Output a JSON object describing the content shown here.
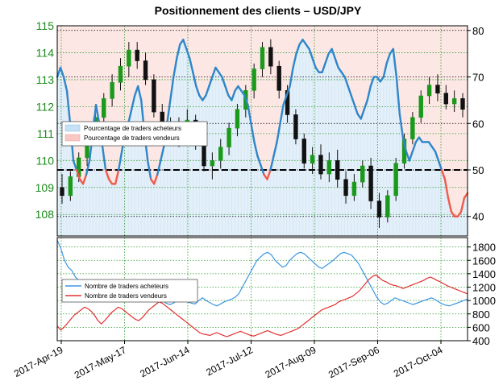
{
  "chart_data": [
    {
      "type": "candlestick",
      "title": "Positionnement des clients – USD/JPY",
      "x_ticks": [
        "2017-Apr-19",
        "2017-May-17",
        "2017-Jun-14",
        "2017-Jul-12",
        "2017-Aug-09",
        "2017-Sep-06",
        "2017-Oct-04"
      ],
      "y_left_ticks": [
        108,
        109,
        110,
        111,
        112,
        113,
        114,
        115
      ],
      "y_left_range": [
        107.2,
        115
      ],
      "y_right_ticks": [
        40,
        50,
        60,
        70,
        80
      ],
      "y_right_range": [
        35.8,
        81
      ],
      "grid": true,
      "legend_position": "left",
      "legend": [
        "Pourcentage de traders acheteurs",
        "Pourcentage de traders vendeurs"
      ],
      "reference_line_right": 50,
      "price_ohlc_sample": [
        [
          109.0,
          109.5,
          108.4,
          108.7
        ],
        [
          108.7,
          109.6,
          108.5,
          109.4
        ],
        [
          109.4,
          110.3,
          109.2,
          110.1
        ],
        [
          110.1,
          111.0,
          109.8,
          110.8
        ],
        [
          110.8,
          111.8,
          110.6,
          111.6
        ],
        [
          111.6,
          112.5,
          111.2,
          112.3
        ],
        [
          112.3,
          113.2,
          112.0,
          112.9
        ],
        [
          112.9,
          113.8,
          112.6,
          113.5
        ],
        [
          113.5,
          114.4,
          113.1,
          114.1
        ],
        [
          114.1,
          114.4,
          113.4,
          113.7
        ],
        [
          113.7,
          114.0,
          112.8,
          113.0
        ],
        [
          113.0,
          113.2,
          111.6,
          111.8
        ],
        [
          111.8,
          112.1,
          110.9,
          111.2
        ],
        [
          111.2,
          111.6,
          110.6,
          110.9
        ],
        [
          110.9,
          111.6,
          110.5,
          111.3
        ],
        [
          111.3,
          111.9,
          110.9,
          111.5
        ],
        [
          111.5,
          111.7,
          110.4,
          110.6
        ],
        [
          110.6,
          110.9,
          109.6,
          109.8
        ],
        [
          109.8,
          110.3,
          109.3,
          110.0
        ],
        [
          110.0,
          110.8,
          109.7,
          110.5
        ],
        [
          110.5,
          111.4,
          110.2,
          111.2
        ],
        [
          111.2,
          112.1,
          110.9,
          111.9
        ],
        [
          111.9,
          112.8,
          111.6,
          112.6
        ],
        [
          112.6,
          113.6,
          112.3,
          113.4
        ],
        [
          113.4,
          114.4,
          113.1,
          114.2
        ],
        [
          114.2,
          114.5,
          113.2,
          113.5
        ],
        [
          113.5,
          113.7,
          112.3,
          112.6
        ],
        [
          112.6,
          112.8,
          111.4,
          111.7
        ],
        [
          111.7,
          111.9,
          110.6,
          110.8
        ],
        [
          110.8,
          111.0,
          109.7,
          109.9
        ],
        [
          109.9,
          110.5,
          109.5,
          110.2
        ],
        [
          110.2,
          110.6,
          109.3,
          109.5
        ],
        [
          109.5,
          110.3,
          109.2,
          110.0
        ],
        [
          110.0,
          110.4,
          109.0,
          109.3
        ],
        [
          109.3,
          109.6,
          108.4,
          108.7
        ],
        [
          108.7,
          109.5,
          108.5,
          109.2
        ],
        [
          109.2,
          110.0,
          109.0,
          109.8
        ],
        [
          109.8,
          110.1,
          108.2,
          108.5
        ],
        [
          108.5,
          108.8,
          107.5,
          107.9
        ],
        [
          107.9,
          108.9,
          107.7,
          108.7
        ],
        [
          108.7,
          110.1,
          108.5,
          109.9
        ],
        [
          109.9,
          111.0,
          109.7,
          110.8
        ],
        [
          110.8,
          111.8,
          110.6,
          111.6
        ],
        [
          111.6,
          112.6,
          111.4,
          112.4
        ],
        [
          112.4,
          113.1,
          112.1,
          112.8
        ],
        [
          112.8,
          113.2,
          112.2,
          112.5
        ],
        [
          112.5,
          112.8,
          111.9,
          112.1
        ],
        [
          112.1,
          112.6,
          111.8,
          112.3
        ],
        [
          112.3,
          112.5,
          111.6,
          111.9
        ]
      ]
    },
    {
      "type": "line",
      "series": [
        {
          "name": "Pourcentage de traders acheteurs / vendeurs",
          "color_above": "#2f86c8",
          "color_below": "#f05a4a",
          "values": [
            70,
            72,
            70,
            67,
            60,
            52,
            50,
            48,
            47,
            49,
            52,
            58,
            64,
            60,
            55,
            50,
            48,
            47,
            47,
            50,
            54,
            58,
            60,
            63,
            66,
            68,
            65,
            58,
            52,
            48,
            47,
            49,
            52,
            55,
            60,
            65,
            70,
            74,
            77,
            78,
            76,
            74,
            71,
            68,
            66,
            65,
            66,
            68,
            70,
            72,
            71,
            70,
            68,
            66,
            65,
            67,
            68,
            67,
            66,
            64,
            60,
            56,
            53,
            51,
            49,
            48,
            50,
            53,
            56,
            60,
            64,
            66,
            68,
            72,
            75,
            77,
            78,
            77,
            76,
            74,
            72,
            71,
            71,
            73,
            75,
            76,
            74,
            72,
            71,
            70,
            68,
            66,
            64,
            62,
            61,
            63,
            65,
            68,
            70,
            70,
            69,
            70,
            73,
            75,
            76,
            70,
            62,
            57,
            54,
            52,
            54,
            56,
            57,
            56,
            56,
            56,
            55,
            54,
            52,
            50,
            48,
            44,
            41,
            40,
            40,
            41,
            44,
            45
          ]
        }
      ],
      "y_ticks": [
        40,
        50,
        60,
        70,
        80
      ],
      "y_range": [
        35.8,
        81
      ]
    },
    {
      "type": "line",
      "y_ticks": [
        400,
        600,
        800,
        1000,
        1200,
        1400,
        1600,
        1800
      ],
      "y_range": [
        400,
        1940
      ],
      "legend_position": "left",
      "series": [
        {
          "name": "Nombre de traders acheteurs",
          "color": "#3d97e0",
          "values": [
            1900,
            1780,
            1600,
            1500,
            1450,
            1350,
            1300,
            1250,
            1150,
            1050,
            980,
            1020,
            1120,
            1200,
            1150,
            1080,
            1020,
            1000,
            980,
            1050,
            1100,
            1150,
            1080,
            1020,
            1060,
            1120,
            1180,
            1120,
            1060,
            1000,
            960,
            940,
            960,
            1000,
            1050,
            1000,
            980,
            960,
            950,
            1000,
            1040,
            1000,
            970,
            940,
            920,
            950,
            980,
            1000,
            1020,
            1050,
            1100,
            1200,
            1300,
            1400,
            1500,
            1600,
            1650,
            1700,
            1720,
            1680,
            1600,
            1550,
            1500,
            1520,
            1600,
            1650,
            1700,
            1720,
            1700,
            1650,
            1600,
            1550,
            1500,
            1480,
            1520,
            1560,
            1600,
            1650,
            1700,
            1720,
            1700,
            1680,
            1620,
            1550,
            1450,
            1350,
            1250,
            1150,
            1050,
            980,
            940,
            960,
            1000,
            1040,
            1020,
            1000,
            980,
            960,
            940,
            960,
            980,
            1000,
            1020,
            1040,
            1020,
            980,
            950,
            930,
            920,
            940,
            960,
            980,
            1000,
            1020
          ]
        },
        {
          "name": "Nombre de traders vendeurs",
          "color": "#e23030",
          "values": [
            620,
            560,
            600,
            660,
            720,
            780,
            820,
            860,
            900,
            880,
            840,
            780,
            700,
            650,
            700,
            760,
            820,
            860,
            900,
            880,
            840,
            800,
            760,
            720,
            700,
            740,
            800,
            860,
            900,
            940,
            980,
            960,
            920,
            880,
            840,
            800,
            760,
            720,
            680,
            640,
            600,
            560,
            520,
            500,
            490,
            480,
            500,
            520,
            500,
            480,
            460,
            480,
            500,
            520,
            540,
            520,
            500,
            480,
            470,
            490,
            510,
            530,
            550,
            530,
            510,
            490,
            480,
            500,
            520,
            540,
            560,
            580,
            620,
            660,
            700,
            740,
            780,
            820,
            860,
            880,
            900,
            920,
            940,
            980,
            1000,
            1020,
            1040,
            1060,
            1100,
            1140,
            1200,
            1260,
            1320,
            1360,
            1380,
            1340,
            1300,
            1280,
            1250,
            1230,
            1220,
            1200,
            1180,
            1200,
            1220,
            1240,
            1260,
            1280,
            1300,
            1330,
            1350,
            1330,
            1300,
            1280,
            1250,
            1220,
            1200,
            1180,
            1160,
            1140,
            1120,
            1100
          ]
        }
      ]
    }
  ]
}
